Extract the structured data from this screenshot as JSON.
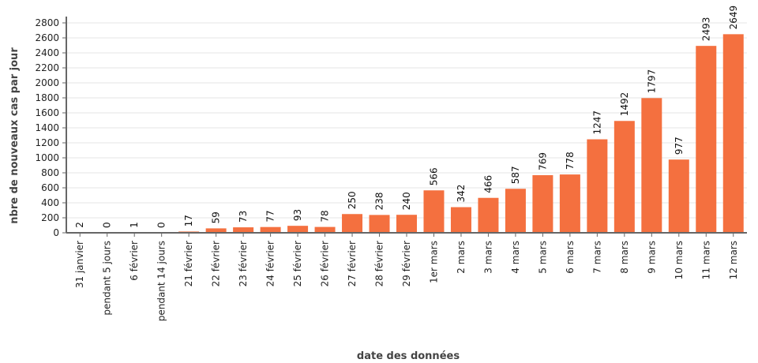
{
  "chart_data": {
    "type": "bar",
    "title": "",
    "xlabel": "date des données",
    "ylabel": "nbre de nouveaux cas par jour",
    "ylim": [
      0,
      2800
    ],
    "yticks": [
      0,
      200,
      400,
      600,
      800,
      1000,
      1200,
      1400,
      1600,
      1800,
      2000,
      2200,
      2400,
      2600,
      2800
    ],
    "grid": true,
    "bar_color": "#f4703f",
    "categories": [
      "31 janvier",
      "pendant 5 jours",
      "6 février",
      "pendant 14 jours",
      "21 février",
      "22 février",
      "23 février",
      "24 février",
      "25 février",
      "26 février",
      "27 février",
      "28 février",
      "29 février",
      "1er mars",
      "2 mars",
      "3 mars",
      "4 mars",
      "5 mars",
      "6 mars",
      "7 mars",
      "8 mars",
      "9 mars",
      "10 mars",
      "11 mars",
      "12 mars"
    ],
    "values": [
      2,
      0,
      1,
      0,
      17,
      59,
      73,
      77,
      93,
      78,
      250,
      238,
      240,
      566,
      342,
      466,
      587,
      769,
      778,
      1247,
      1492,
      1797,
      977,
      2493,
      2649
    ]
  }
}
